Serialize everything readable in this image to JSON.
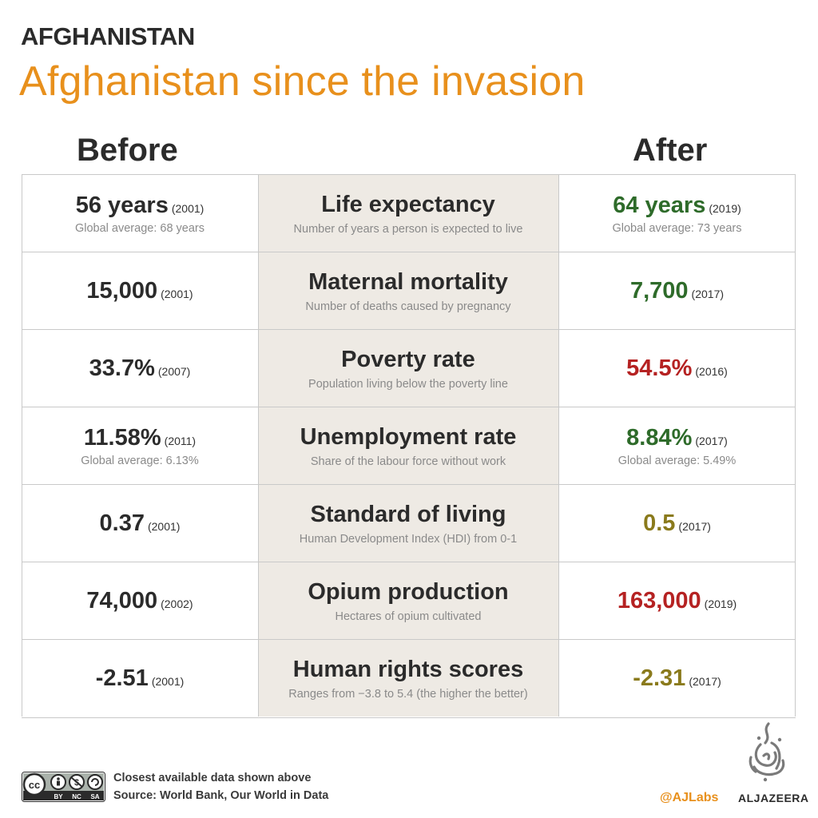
{
  "header": {
    "kicker": "AFGHANISTAN",
    "title": "Afghanistan since the invasion"
  },
  "columns": {
    "before": "Before",
    "after": "After"
  },
  "colors": {
    "accent": "#e8901c",
    "good": "#2e6b2a",
    "bad": "#b52222",
    "neutral": "#8a7a1c",
    "dark": "#2b2b2b"
  },
  "rows": [
    {
      "indicator": "Life expectancy",
      "description": "Number of years a person is expected to live",
      "before": {
        "value": "56 years",
        "year": "(2001)",
        "note": "Global average: 68 years"
      },
      "after": {
        "value": "64 years",
        "year": "(2019)",
        "note": "Global average: 73 years",
        "color": "#2e6b2a"
      }
    },
    {
      "indicator": "Maternal mortality",
      "description": "Number of deaths caused by pregnancy",
      "before": {
        "value": "15,000",
        "year": "(2001)",
        "note": ""
      },
      "after": {
        "value": "7,700",
        "year": "(2017)",
        "note": "",
        "color": "#2e6b2a"
      }
    },
    {
      "indicator": "Poverty rate",
      "description": "Population living below the  poverty line",
      "before": {
        "value": "33.7%",
        "year": "(2007)",
        "note": ""
      },
      "after": {
        "value": "54.5%",
        "year": "(2016)",
        "note": "",
        "color": "#b52222"
      }
    },
    {
      "indicator": "Unemployment rate",
      "description": "Share of the labour force without work",
      "before": {
        "value": "11.58%",
        "year": "(2011)",
        "note": "Global average: 6.13%"
      },
      "after": {
        "value": "8.84%",
        "year": "(2017)",
        "note": "Global average: 5.49%",
        "color": "#2e6b2a"
      }
    },
    {
      "indicator": "Standard of living",
      "description": "Human Development Index (HDI) from 0-1",
      "before": {
        "value": "0.37",
        "year": "(2001)",
        "note": ""
      },
      "after": {
        "value": "0.5",
        "year": "(2017)",
        "note": "",
        "color": "#8a7a1c"
      }
    },
    {
      "indicator": "Opium production",
      "description": "Hectares of opium cultivated",
      "before": {
        "value": "74,000",
        "year": "(2002)",
        "note": ""
      },
      "after": {
        "value": "163,000",
        "year": "(2019)",
        "note": "",
        "color": "#b52222"
      }
    },
    {
      "indicator": "Human rights scores",
      "description": "Ranges from −3.8 to 5.4 (the higher the better)",
      "before": {
        "value": "-2.51",
        "year": "(2001)",
        "note": ""
      },
      "after": {
        "value": "-2.31",
        "year": "(2017)",
        "note": "",
        "color": "#8a7a1c"
      }
    }
  ],
  "footer": {
    "license_labels": [
      "BY",
      "NC",
      "SA"
    ],
    "note": "Closest available data shown above",
    "source": "Source: World Bank, Our World in Data",
    "handle": "@AJLabs",
    "brand": "ALJAZEERA",
    "logo_icon": "al-jazeera-calligraphy-logo",
    "license_icon": "creative-commons-by-nc-sa-icon"
  }
}
